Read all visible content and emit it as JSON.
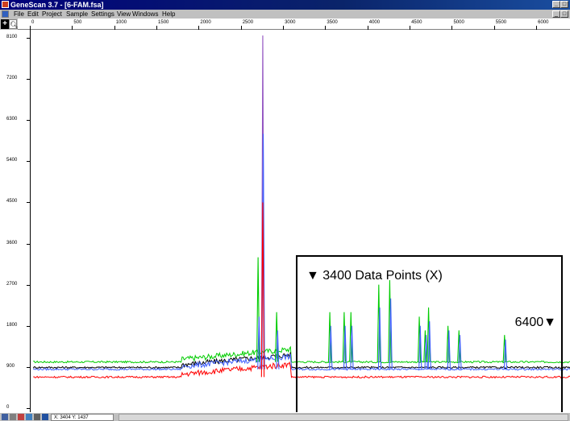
{
  "window": {
    "title": "GeneScan 3.7 - [6-FAM.fsa]",
    "controls": [
      "_",
      "□",
      "×"
    ]
  },
  "menu": [
    "File",
    "Edit",
    "Project",
    "Sample",
    "Settings",
    "View",
    "Windows",
    "Help"
  ],
  "x_ruler": {
    "labels": [
      "0",
      "500",
      "1000",
      "1500",
      "2000",
      "2500",
      "3000",
      "3500",
      "4000",
      "4500",
      "5000",
      "5500",
      "6000"
    ],
    "values": [
      0,
      500,
      1000,
      1500,
      2000,
      2500,
      3000,
      3500,
      4000,
      4500,
      5000,
      5500,
      6000
    ]
  },
  "y_axis": {
    "labels": [
      "0",
      "900",
      "1800",
      "2700",
      "3600",
      "4500",
      "5400",
      "6300",
      "7200",
      "8100"
    ],
    "values": [
      0,
      900,
      1800,
      2700,
      3600,
      4500,
      5400,
      6300,
      7200,
      8100
    ]
  },
  "callout": {
    "title": "▼ 3400 Data Points (X)",
    "end_marker": "6400▼"
  },
  "status": {
    "coords": "X: 3404     Y: 1437"
  },
  "colors": {
    "green": "#00cc00",
    "black": "#000000",
    "blue": "#4060ff",
    "red": "#ff0000",
    "purple": "#9050c0",
    "titlebar": "#00007b"
  },
  "chart_data": {
    "type": "line",
    "xlim": [
      0,
      6400
    ],
    "ylim": [
      0,
      8100
    ],
    "series": [
      {
        "color": "green",
        "baseline": 1010
      },
      {
        "color": "black",
        "baseline": 890
      },
      {
        "color": "blue",
        "baseline": 850
      },
      {
        "color": "red",
        "baseline": 680
      }
    ],
    "peaks": [
      {
        "x": 2760,
        "heights": {
          "purple": 8150,
          "blue": 6000,
          "red": 4500
        }
      },
      {
        "x": 2710,
        "heights": {
          "green": 3300,
          "blue": 2000
        }
      },
      {
        "x": 2930,
        "heights": {
          "green": 2100,
          "blue": 1700
        }
      },
      {
        "x": 3560,
        "heights": {
          "green": 2100,
          "blue": 1800
        }
      },
      {
        "x": 3730,
        "heights": {
          "green": 2100,
          "blue": 1800
        }
      },
      {
        "x": 3810,
        "heights": {
          "green": 2100,
          "blue": 1800
        }
      },
      {
        "x": 4140,
        "heights": {
          "green": 2700,
          "blue": 2200
        }
      },
      {
        "x": 4270,
        "heights": {
          "green": 2800,
          "blue": 2400
        }
      },
      {
        "x": 4620,
        "heights": {
          "green": 2000,
          "blue": 1800
        }
      },
      {
        "x": 4690,
        "heights": {
          "green": 1700,
          "blue": 1600
        }
      },
      {
        "x": 4730,
        "heights": {
          "green": 2200,
          "blue": 1900
        }
      },
      {
        "x": 4960,
        "heights": {
          "green": 1800,
          "blue": 1700
        }
      },
      {
        "x": 5090,
        "heights": {
          "green": 1700,
          "blue": 1600
        }
      },
      {
        "x": 5630,
        "heights": {
          "green": 1600,
          "blue": 1500
        }
      }
    ]
  }
}
